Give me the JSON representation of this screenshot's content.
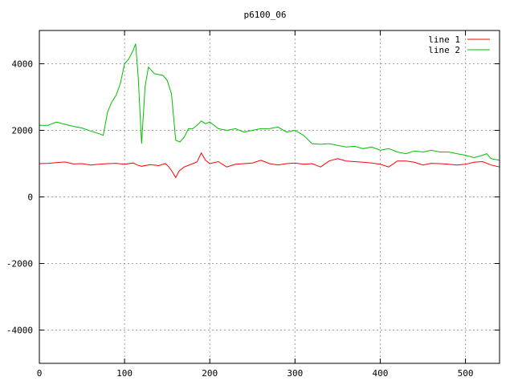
{
  "chart_data": {
    "type": "line",
    "title": "p6100_06",
    "xlabel": "",
    "ylabel": "",
    "xlim": [
      0,
      540
    ],
    "ylim": [
      -5000,
      5000
    ],
    "xticks": [
      0,
      100,
      200,
      300,
      400,
      500
    ],
    "yticks": [
      -4000,
      -2000,
      0,
      2000,
      4000
    ],
    "grid": true,
    "legend_position": "top-right",
    "series": [
      {
        "name": "line 1",
        "color": "#ff0000",
        "points": [
          [
            0,
            1000
          ],
          [
            10,
            1010
          ],
          [
            20,
            1030
          ],
          [
            30,
            1050
          ],
          [
            40,
            990
          ],
          [
            50,
            1000
          ],
          [
            60,
            960
          ],
          [
            70,
            980
          ],
          [
            80,
            1000
          ],
          [
            90,
            1010
          ],
          [
            100,
            980
          ],
          [
            110,
            1020
          ],
          [
            115,
            960
          ],
          [
            120,
            920
          ],
          [
            130,
            970
          ],
          [
            140,
            940
          ],
          [
            148,
            1000
          ],
          [
            152,
            900
          ],
          [
            156,
            760
          ],
          [
            160,
            580
          ],
          [
            164,
            780
          ],
          [
            170,
            900
          ],
          [
            180,
            1000
          ],
          [
            185,
            1050
          ],
          [
            190,
            1320
          ],
          [
            195,
            1100
          ],
          [
            200,
            1000
          ],
          [
            210,
            1060
          ],
          [
            220,
            900
          ],
          [
            230,
            980
          ],
          [
            240,
            1000
          ],
          [
            250,
            1020
          ],
          [
            260,
            1100
          ],
          [
            270,
            1000
          ],
          [
            280,
            960
          ],
          [
            290,
            1000
          ],
          [
            300,
            1020
          ],
          [
            310,
            980
          ],
          [
            320,
            1000
          ],
          [
            330,
            900
          ],
          [
            340,
            1080
          ],
          [
            350,
            1150
          ],
          [
            360,
            1080
          ],
          [
            370,
            1060
          ],
          [
            380,
            1040
          ],
          [
            390,
            1020
          ],
          [
            400,
            980
          ],
          [
            410,
            900
          ],
          [
            420,
            1080
          ],
          [
            430,
            1080
          ],
          [
            440,
            1040
          ],
          [
            450,
            960
          ],
          [
            460,
            1010
          ],
          [
            470,
            1000
          ],
          [
            480,
            980
          ],
          [
            490,
            960
          ],
          [
            500,
            980
          ],
          [
            510,
            1040
          ],
          [
            520,
            1060
          ],
          [
            530,
            960
          ],
          [
            540,
            900
          ]
        ]
      },
      {
        "name": "line 2",
        "color": "#00c000",
        "points": [
          [
            0,
            2150
          ],
          [
            10,
            2150
          ],
          [
            20,
            2250
          ],
          [
            30,
            2180
          ],
          [
            40,
            2120
          ],
          [
            50,
            2070
          ],
          [
            60,
            1980
          ],
          [
            70,
            1900
          ],
          [
            75,
            1850
          ],
          [
            80,
            2550
          ],
          [
            85,
            2850
          ],
          [
            90,
            3050
          ],
          [
            95,
            3400
          ],
          [
            100,
            4000
          ],
          [
            105,
            4150
          ],
          [
            110,
            4400
          ],
          [
            113,
            4600
          ],
          [
            116,
            3600
          ],
          [
            120,
            1600
          ],
          [
            124,
            3300
          ],
          [
            128,
            3900
          ],
          [
            135,
            3700
          ],
          [
            145,
            3650
          ],
          [
            150,
            3500
          ],
          [
            155,
            3100
          ],
          [
            160,
            1700
          ],
          [
            165,
            1650
          ],
          [
            170,
            1800
          ],
          [
            175,
            2050
          ],
          [
            180,
            2050
          ],
          [
            185,
            2150
          ],
          [
            190,
            2280
          ],
          [
            195,
            2200
          ],
          [
            200,
            2250
          ],
          [
            210,
            2050
          ],
          [
            220,
            2000
          ],
          [
            230,
            2050
          ],
          [
            240,
            1950
          ],
          [
            250,
            2000
          ],
          [
            260,
            2050
          ],
          [
            270,
            2050
          ],
          [
            280,
            2100
          ],
          [
            290,
            1950
          ],
          [
            300,
            2000
          ],
          [
            310,
            1850
          ],
          [
            320,
            1600
          ],
          [
            330,
            1580
          ],
          [
            340,
            1600
          ],
          [
            350,
            1550
          ],
          [
            360,
            1500
          ],
          [
            370,
            1520
          ],
          [
            380,
            1450
          ],
          [
            390,
            1500
          ],
          [
            400,
            1400
          ],
          [
            410,
            1450
          ],
          [
            420,
            1350
          ],
          [
            430,
            1300
          ],
          [
            440,
            1380
          ],
          [
            450,
            1350
          ],
          [
            460,
            1400
          ],
          [
            470,
            1350
          ],
          [
            480,
            1350
          ],
          [
            490,
            1300
          ],
          [
            500,
            1250
          ],
          [
            510,
            1180
          ],
          [
            520,
            1250
          ],
          [
            525,
            1300
          ],
          [
            530,
            1150
          ],
          [
            540,
            1100
          ]
        ]
      }
    ]
  }
}
